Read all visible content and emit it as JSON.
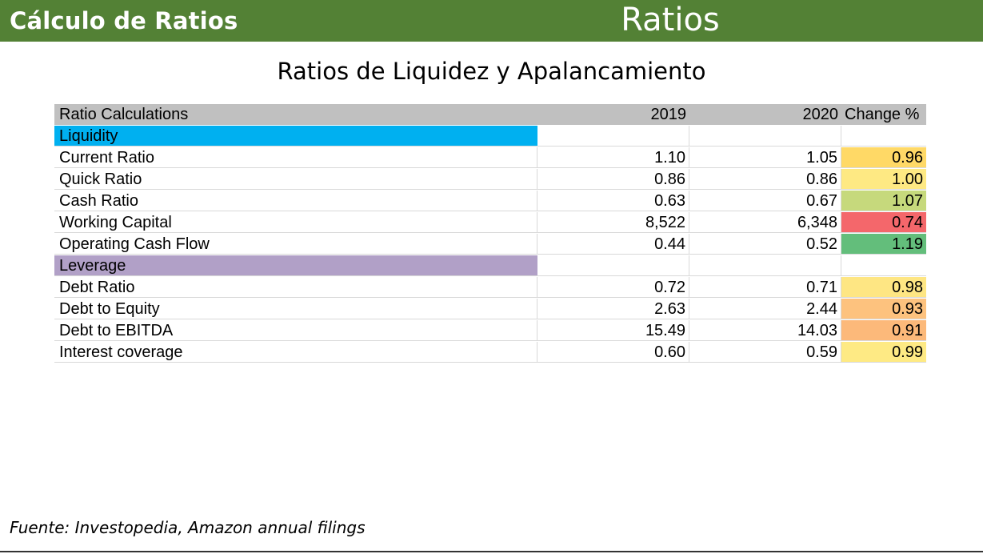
{
  "header": {
    "left_title": "Cálculo de Ratios",
    "center_title": "Ratios"
  },
  "subtitle": "Ratios de Liquidez y Apalancamiento",
  "table": {
    "headers": {
      "label": "Ratio Calculations",
      "y2019": "2019",
      "y2020": "2020",
      "change": "Change %"
    },
    "sections": [
      {
        "name": "Liquidity",
        "color": "#00b0f0",
        "rows": [
          {
            "label": "Current Ratio",
            "y2019": "1.10",
            "y2020": "1.05",
            "change": "0.96",
            "change_color": "#ffd966"
          },
          {
            "label": "Quick Ratio",
            "y2019": "0.86",
            "y2020": "0.86",
            "change": "1.00",
            "change_color": "#fee983"
          },
          {
            "label": "Cash Ratio",
            "y2019": "0.63",
            "y2020": "0.67",
            "change": "1.07",
            "change_color": "#c6d97c"
          },
          {
            "label": "Working Capital",
            "y2019": "8,522",
            "y2020": "6,348",
            "change": "0.74",
            "change_color": "#f4676b"
          },
          {
            "label": "Operating Cash Flow",
            "y2019": "0.44",
            "y2020": "0.52",
            "change": "1.19",
            "change_color": "#63be7b"
          }
        ]
      },
      {
        "name": "Leverage",
        "color": "#b1a0c7",
        "rows": [
          {
            "label": "Debt Ratio",
            "y2019": "0.72",
            "y2020": "0.71",
            "change": "0.98",
            "change_color": "#fee683"
          },
          {
            "label": "Debt to Equity",
            "y2019": "2.63",
            "y2020": "2.44",
            "change": "0.93",
            "change_color": "#fdc27e"
          },
          {
            "label": "Debt to EBITDA",
            "y2019": "15.49",
            "y2020": "14.03",
            "change": "0.91",
            "change_color": "#fcb97a"
          },
          {
            "label": "Interest coverage",
            "y2019": "0.60",
            "y2020": "0.59",
            "change": "0.99",
            "change_color": "#feea84"
          }
        ]
      }
    ]
  },
  "footer": "Fuente: Investopedia, Amazon annual filings"
}
